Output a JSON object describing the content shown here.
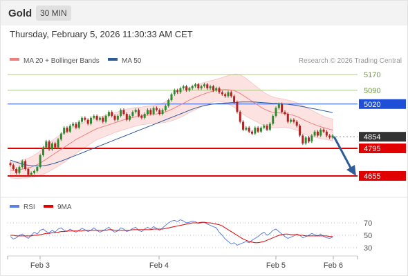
{
  "header": {
    "symbol": "Gold",
    "timeframe": "30 MIN",
    "timestamp": "Thursday, February 5, 2026 11:30:33 AM CET"
  },
  "legend": {
    "bollinger": "MA 20 + Bollinger Bands",
    "ma50": "MA 50",
    "credit": "Research © 2026 Trading Central",
    "rsi": "RSI",
    "rsi_ma": "9MA"
  },
  "colors": {
    "bollinger": "#f08080",
    "ma50": "#2e5c99",
    "band_fill": "#fde2e2",
    "resistance": "#a9cf7e",
    "pivot": "#1f4fd6",
    "support": "#e00000",
    "last_price": "#333333",
    "candle_up": "#2e8b2e",
    "candle_down": "#b22222",
    "rsi": "#5b7fe0",
    "rsi_ma": "#e00000",
    "arrow": "#2e5c99"
  },
  "chart_data": {
    "type": "candlestick",
    "title": "Gold",
    "timeframe": "30 MIN",
    "price_axis": {
      "min": 4600,
      "max": 5200
    },
    "levels": [
      {
        "value": 5170,
        "label": "5170",
        "kind": "resistance"
      },
      {
        "value": 5090,
        "label": "5090",
        "kind": "resistance"
      },
      {
        "value": 5020,
        "label": "5020",
        "kind": "pivot"
      },
      {
        "value": 4854,
        "label": "4854",
        "kind": "last"
      },
      {
        "value": 4795,
        "label": "4795",
        "kind": "support"
      },
      {
        "value": 4655,
        "label": "4655",
        "kind": "support"
      }
    ],
    "x_ticks": [
      "Feb 3",
      "Feb 4",
      "Feb 5",
      "Feb 6"
    ],
    "closes": [
      4710,
      4690,
      4670,
      4700,
      4730,
      4690,
      4660,
      4670,
      4680,
      4700,
      4760,
      4800,
      4830,
      4790,
      4820,
      4800,
      4840,
      4870,
      4900,
      4880,
      4910,
      4920,
      4900,
      4930,
      4950,
      4940,
      4920,
      4950,
      4960,
      4940,
      4950,
      4930,
      4960,
      4980,
      4960,
      4940,
      4960,
      4990,
      4970,
      4940,
      4960,
      4980,
      4990,
      4960,
      4950,
      4970,
      4990,
      4970,
      5000,
      4990,
      4970,
      4990,
      5010,
      5040,
      5070,
      5090,
      5080,
      5100,
      5110,
      5090,
      5100,
      5110,
      5120,
      5100,
      5110,
      5120,
      5100,
      5110,
      5090,
      5100,
      5080,
      5070,
      5060,
      5080,
      5060,
      5030,
      4980,
      4930,
      4890,
      4900,
      4880,
      4870,
      4900,
      4880,
      4900,
      4910,
      4890,
      4920,
      4960,
      5000,
      5020,
      4980,
      4970,
      4930,
      4940,
      4930,
      4910,
      4860,
      4820,
      4850,
      4830,
      4860,
      4880,
      4860,
      4890,
      4880,
      4860,
      4850,
      4860
    ],
    "ma20": [
      4685,
      4684,
      4683,
      4685,
      4690,
      4692,
      4695,
      4700,
      4706,
      4712,
      4720,
      4730,
      4740,
      4750,
      4760,
      4770,
      4780,
      4790,
      4800,
      4810,
      4820,
      4830,
      4840,
      4848,
      4856,
      4864,
      4872,
      4880,
      4888,
      4895,
      4900,
      4905,
      4910,
      4915,
      4920,
      4925,
      4930,
      4935,
      4940,
      4944,
      4948,
      4952,
      4955,
      4958,
      4960,
      4962,
      4964,
      4966,
      4968,
      4970,
      4972,
      4975,
      4980,
      4986,
      4993,
      5000,
      5008,
      5016,
      5024,
      5032,
      5040,
      5047,
      5054,
      5060,
      5066,
      5072,
      5077,
      5082,
      5086,
      5090,
      5092,
      5093,
      5094,
      5093,
      5091,
      5088,
      5082,
      5074,
      5064,
      5054,
      5044,
      5034,
      5024,
      5014,
      5004,
      4995,
      4988,
      4982,
      4978,
      4976,
      4975,
      4974,
      4973,
      4970,
      4966,
      4962,
      4957,
      4950,
      4942,
      4935,
      4928,
      4922,
      4916,
      4910,
      4905,
      4900,
      4896,
      4892,
      4888
    ],
    "ma50": [
      4735,
      4730,
      4725,
      4720,
      4716,
      4712,
      4709,
      4707,
      4706,
      4706,
      4706,
      4707,
      4709,
      4712,
      4716,
      4720,
      4725,
      4730,
      4736,
      4742,
      4748,
      4754,
      4760,
      4766,
      4772,
      4778,
      4784,
      4790,
      4796,
      4802,
      4808,
      4814,
      4820,
      4826,
      4832,
      4838,
      4844,
      4850,
      4856,
      4862,
      4868,
      4874,
      4880,
      4886,
      4892,
      4898,
      4904,
      4910,
      4916,
      4922,
      4928,
      4934,
      4940,
      4946,
      4952,
      4958,
      4964,
      4970,
      4976,
      4982,
      4988,
      4994,
      4999,
      5004,
      5008,
      5012,
      5015,
      5018,
      5020,
      5022,
      5023,
      5024,
      5025,
      5026,
      5027,
      5028,
      5029,
      5030,
      5031,
      5031,
      5031,
      5031,
      5030,
      5029,
      5028,
      5027,
      5026,
      5025,
      5024,
      5023,
      5022,
      5021,
      5020,
      5019,
      5017,
      5015,
      5013,
      5010,
      5007,
      5004,
      5001,
      4998,
      4995,
      4992,
      4989,
      4986,
      4983,
      4980,
      4977
    ],
    "bb_width": [
      40,
      40,
      42,
      44,
      46,
      48,
      50,
      52,
      55,
      58,
      62,
      66,
      70,
      72,
      74,
      75,
      76,
      76,
      76,
      75,
      74,
      72,
      70,
      68,
      66,
      64,
      62,
      60,
      58,
      56,
      55,
      54,
      53,
      52,
      51,
      50,
      50,
      50,
      50,
      50,
      49,
      48,
      47,
      46,
      45,
      45,
      45,
      45,
      45,
      46,
      48,
      50,
      52,
      55,
      58,
      60,
      62,
      63,
      64,
      64,
      64,
      63,
      62,
      61,
      60,
      58,
      57,
      56,
      55,
      56,
      58,
      62,
      66,
      72,
      78,
      84,
      90,
      94,
      96,
      96,
      94,
      92,
      90,
      88,
      86,
      84,
      82,
      80,
      78,
      76,
      74,
      72,
      70,
      70,
      70,
      70,
      70,
      70,
      70,
      70,
      68,
      66,
      64,
      62,
      60,
      58,
      56,
      56,
      56
    ],
    "rsi_axis": {
      "min": 20,
      "max": 80,
      "ticks": [
        70,
        50,
        30
      ]
    },
    "rsi": [
      48,
      44,
      46,
      50,
      52,
      48,
      45,
      50,
      55,
      52,
      58,
      60,
      56,
      54,
      58,
      55,
      60,
      62,
      58,
      56,
      60,
      57,
      55,
      58,
      61,
      59,
      56,
      58,
      62,
      58,
      55,
      57,
      60,
      63,
      58,
      55,
      57,
      62,
      60,
      56,
      58,
      61,
      63,
      58,
      56,
      60,
      63,
      60,
      64,
      61,
      58,
      62,
      66,
      70,
      73,
      74,
      72,
      75,
      73,
      70,
      71,
      73,
      72,
      69,
      70,
      71,
      68,
      66,
      64,
      62,
      55,
      50,
      44,
      40,
      36,
      38,
      34,
      36,
      38,
      40,
      38,
      42,
      45,
      48,
      52,
      55,
      50,
      53,
      58,
      60,
      56,
      52,
      48,
      45,
      47,
      49,
      52,
      50,
      46,
      48,
      50,
      53,
      51,
      49,
      52,
      48,
      46,
      45,
      47
    ],
    "rsi_ma": [
      50,
      50,
      49,
      49,
      49,
      49,
      49,
      49,
      50,
      50,
      51,
      52,
      53,
      53,
      54,
      54,
      55,
      56,
      56,
      57,
      57,
      57,
      57,
      57,
      57,
      58,
      58,
      58,
      58,
      58,
      58,
      58,
      58,
      59,
      59,
      58,
      58,
      58,
      58,
      58,
      58,
      59,
      59,
      59,
      59,
      59,
      59,
      59,
      60,
      60,
      60,
      60,
      61,
      62,
      63,
      64,
      65,
      66,
      67,
      68,
      69,
      70,
      70,
      70,
      71,
      71,
      70,
      70,
      69,
      68,
      67,
      65,
      62,
      59,
      56,
      53,
      50,
      47,
      44,
      42,
      40,
      39,
      38,
      38,
      39,
      40,
      42,
      44,
      46,
      48,
      50,
      51,
      52,
      52,
      51,
      51,
      51,
      50,
      50,
      49,
      49,
      49,
      49,
      49,
      49,
      49,
      49,
      48,
      48
    ]
  }
}
